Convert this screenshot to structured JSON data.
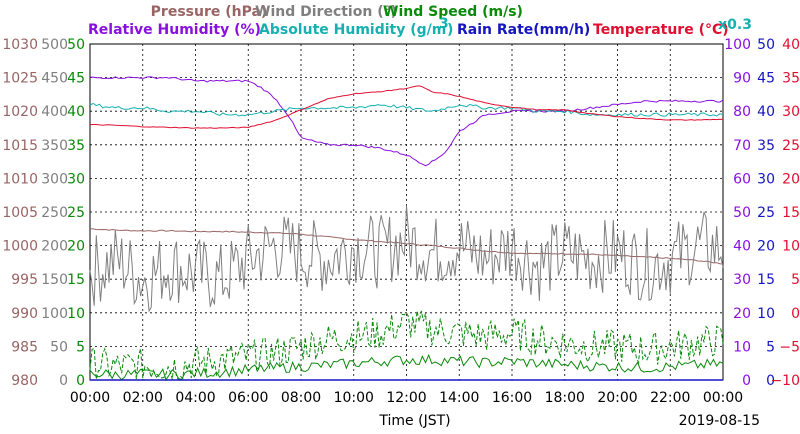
{
  "header": {
    "row1": [
      {
        "text": "Pressure (hPa)",
        "color": "#9a6464"
      },
      {
        "text": "Wind Direction (°)",
        "color": "#7f7f7f"
      },
      {
        "text": "Wind Speed (m/s)",
        "color": "#0a8a0a"
      }
    ],
    "row2": [
      {
        "text": "Relative Humidity (%)",
        "color": "#8a10e0"
      },
      {
        "text": "Absolute Humidity (g/m",
        "color": "#16b0b0"
      },
      {
        "text": "3",
        "color": "#16b0b0"
      },
      {
        "text": ")",
        "color": "#16b0b0"
      },
      {
        "text": "Rain Rate(mm/h)",
        "color": "#1616c0"
      },
      {
        "text": "Temperature (°C)",
        "color": "#e01030"
      },
      {
        "text": "x0.3",
        "color": "#16b0b0"
      }
    ]
  },
  "xaxis": {
    "title": "Time (JST)",
    "date": "2019-08-15",
    "ticks": [
      "00:00",
      "02:00",
      "04:00",
      "06:00",
      "08:00",
      "10:00",
      "12:00",
      "14:00",
      "16:00",
      "18:00",
      "20:00",
      "22:00",
      "00:00"
    ]
  },
  "left_axes": [
    {
      "name": "Pressure (hPa)",
      "color": "#9a6464",
      "ticks": [
        "980",
        "985",
        "990",
        "995",
        "1000",
        "1005",
        "1010",
        "1015",
        "1020",
        "1025",
        "1030"
      ]
    },
    {
      "name": "Wind Direction (°)",
      "color": "#7f7f7f",
      "ticks": [
        "0",
        "50",
        "100",
        "150",
        "200",
        "250",
        "300",
        "350",
        "400",
        "450",
        "500"
      ]
    },
    {
      "name": "Wind Speed (m/s)",
      "color": "#0a8a0a",
      "ticks": [
        "0",
        "5",
        "10",
        "15",
        "20",
        "25",
        "30",
        "35",
        "40",
        "45",
        "50"
      ]
    }
  ],
  "right_axes": [
    {
      "name": "Relative Humidity (%)",
      "color": "#8a10e0",
      "ticks": [
        "0",
        "10",
        "20",
        "30",
        "40",
        "50",
        "60",
        "70",
        "80",
        "90",
        "100"
      ]
    },
    {
      "name": "Rain Rate(mm/h)",
      "color": "#1616c0",
      "ticks": [
        "0",
        "5",
        "10",
        "15",
        "20",
        "25",
        "30",
        "35",
        "40",
        "45",
        "50"
      ]
    },
    {
      "name": "Temperature (°C)",
      "color": "#e01030",
      "ticks": [
        "−10",
        "−5",
        "0",
        "5",
        "10",
        "15",
        "20",
        "25",
        "30",
        "35",
        "40"
      ]
    }
  ],
  "chart_data": {
    "type": "line",
    "title": "",
    "date": "2019-08-15",
    "x_unit": "hours (JST)",
    "xlim": [
      0,
      24
    ],
    "grid": true,
    "series": [
      {
        "name": "Pressure (hPa)",
        "color": "#9a6464",
        "axis": "pressure",
        "ylim": [
          980,
          1030
        ],
        "x": [
          0,
          1,
          2,
          3,
          4,
          5,
          6,
          7,
          8,
          9,
          10,
          11,
          12,
          13,
          14,
          15,
          16,
          17,
          18,
          19,
          20,
          21,
          22,
          23,
          24
        ],
        "y": [
          1002.5,
          1002.3,
          1002.2,
          1002.2,
          1002.1,
          1002.1,
          1002.0,
          1001.9,
          1001.7,
          1001.3,
          1000.9,
          1000.6,
          1000.3,
          1000.0,
          999.6,
          999.2,
          998.9,
          998.8,
          998.8,
          998.7,
          998.5,
          998.3,
          998.1,
          997.8,
          997.3
        ]
      },
      {
        "name": "Wind Direction (°)",
        "color": "#7f7f7f",
        "axis": "wind_direction",
        "ylim": [
          0,
          500
        ],
        "x": [
          0,
          1,
          2,
          3,
          4,
          5,
          6,
          7,
          8,
          9,
          10,
          11,
          12,
          13,
          14,
          15,
          16,
          17,
          18,
          19,
          20,
          21,
          22,
          23,
          24
        ],
        "y": [
          160,
          180,
          150,
          170,
          160,
          150,
          180,
          200,
          190,
          180,
          200,
          190,
          210,
          190,
          200,
          180,
          200,
          170,
          190,
          180,
          190,
          170,
          180,
          200,
          195
        ]
      },
      {
        "name": "Wind Speed (m/s) max",
        "color": "#0a8a0a",
        "axis": "wind_speed",
        "ylim": [
          0,
          50
        ],
        "x": [
          0,
          1,
          2,
          3,
          4,
          5,
          6,
          7,
          8,
          9,
          10,
          11,
          12,
          13,
          14,
          15,
          16,
          17,
          18,
          19,
          20,
          21,
          22,
          23,
          24
        ],
        "y": [
          2.5,
          2.0,
          2.2,
          2.0,
          2.5,
          3.0,
          3.5,
          4.0,
          5.0,
          6.0,
          6.5,
          7.0,
          8.5,
          7.5,
          7.0,
          6.5,
          7.0,
          6.0,
          5.5,
          5.0,
          5.0,
          4.5,
          5.0,
          5.5,
          6.0
        ]
      },
      {
        "name": "Wind Speed (m/s) mean",
        "color": "#0a8a0a",
        "axis": "wind_speed",
        "ylim": [
          0,
          50
        ],
        "x": [
          0,
          1,
          2,
          3,
          4,
          5,
          6,
          7,
          8,
          9,
          10,
          11,
          12,
          13,
          14,
          15,
          16,
          17,
          18,
          19,
          20,
          21,
          22,
          23,
          24
        ],
        "y": [
          1.0,
          0.8,
          0.9,
          0.8,
          1.0,
          1.2,
          1.5,
          1.8,
          2.0,
          2.2,
          2.5,
          2.8,
          3.0,
          3.0,
          2.8,
          2.6,
          2.8,
          2.5,
          2.3,
          2.1,
          2.0,
          1.8,
          2.0,
          2.2,
          2.4
        ]
      },
      {
        "name": "Relative Humidity (%)",
        "color": "#8a10e0",
        "axis": "humidity",
        "ylim": [
          0,
          100
        ],
        "x": [
          0,
          1,
          2,
          3,
          4,
          5,
          6,
          6.5,
          7,
          7.5,
          8,
          9,
          10,
          11,
          12,
          12.7,
          13,
          13.5,
          14,
          15,
          16,
          17,
          18,
          19,
          20,
          21,
          22,
          23,
          24
        ],
        "y": [
          90,
          90,
          90,
          90,
          89,
          89,
          89,
          87,
          84,
          79,
          72,
          70,
          70,
          69,
          67,
          64,
          65,
          68,
          74,
          79,
          80,
          80,
          80,
          81,
          82,
          83,
          83,
          83,
          83
        ]
      },
      {
        "name": "Absolute Humidity (g/m³) x0.3",
        "color": "#16b0b0",
        "axis": "humidity",
        "ylim": [
          0,
          100
        ],
        "x": [
          0,
          1,
          2,
          3,
          4,
          5,
          6,
          7,
          8,
          9,
          10,
          11,
          12,
          13,
          14,
          15,
          16,
          17,
          18,
          19,
          20,
          21,
          22,
          23,
          24
        ],
        "y": [
          82,
          81,
          81,
          80,
          80,
          79,
          79,
          80,
          81,
          81,
          81,
          82,
          81,
          80,
          82,
          81,
          81,
          80,
          80,
          79,
          79,
          79,
          79,
          79,
          79
        ]
      },
      {
        "name": "Rain Rate(mm/h)",
        "color": "#1616c0",
        "axis": "rain",
        "ylim": [
          0,
          50
        ],
        "x": [
          0,
          24
        ],
        "y": [
          0,
          0
        ]
      },
      {
        "name": "Temperature (°C)",
        "color": "#e01030",
        "axis": "temperature",
        "ylim": [
          -10,
          40
        ],
        "x": [
          0,
          1,
          2,
          3,
          4,
          5,
          6,
          7,
          8,
          9,
          10,
          11,
          12,
          12.5,
          13,
          13.5,
          14,
          15,
          16,
          17,
          18,
          19,
          20,
          21,
          22,
          23,
          24
        ],
        "y": [
          28.0,
          27.9,
          27.7,
          27.6,
          27.5,
          27.5,
          27.6,
          28.6,
          30.2,
          31.8,
          32.6,
          32.9,
          33.4,
          33.8,
          32.8,
          32.6,
          32.2,
          31.2,
          30.6,
          30.2,
          30.2,
          29.6,
          29.2,
          28.9,
          28.7,
          28.7,
          28.8
        ]
      }
    ]
  }
}
